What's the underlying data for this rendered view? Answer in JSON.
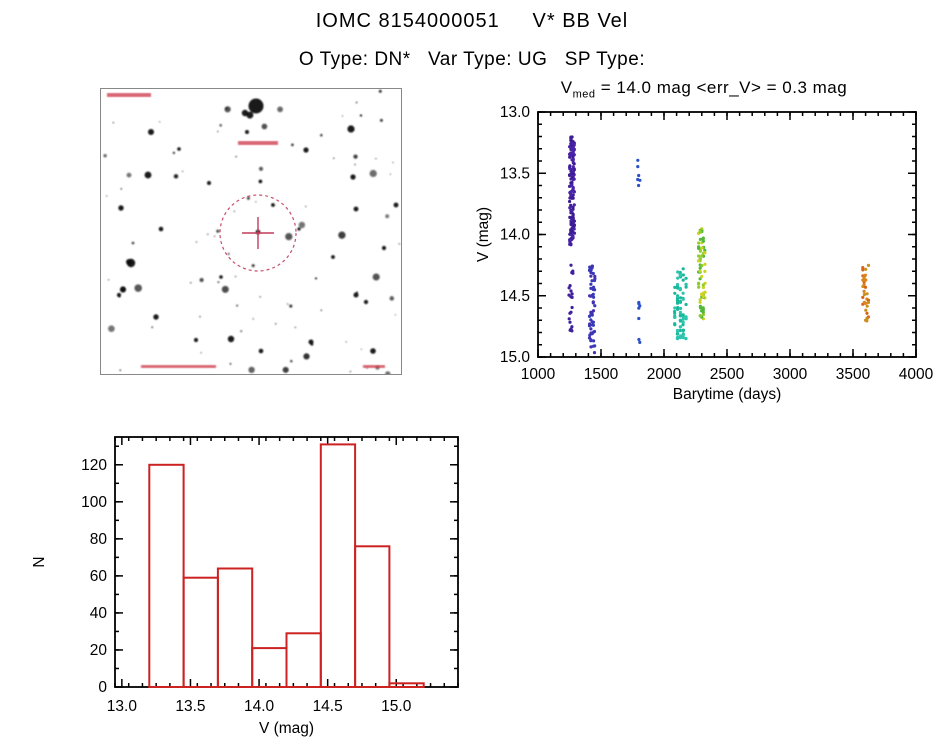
{
  "page": {
    "title": "IOMC 8154000051     V* BB Vel",
    "subtitle": "O Type: DN*   Var Type: UG   SP Type:"
  },
  "lightcurve": {
    "title_v": "V",
    "title_sub": "med",
    "title_rest": " = 14.0 mag <err_V> = 0.3 mag"
  },
  "chart_data": [
    {
      "type": "scatter",
      "title": "V_med = 14.0 mag <err_V> = 0.3 mag",
      "xlabel": "Barytime (days)",
      "ylabel": "V (mag)",
      "xlim": [
        1000,
        4000
      ],
      "ylim": [
        13.0,
        15.0
      ],
      "y_inverted": true,
      "x_ticks": [
        1000,
        1500,
        2000,
        2500,
        3000,
        3500,
        4000
      ],
      "y_ticks": [
        13.0,
        13.5,
        14.0,
        14.5,
        15.0
      ],
      "x_minor_step": 100,
      "y_minor_step": 0.1,
      "clusters": [
        {
          "name": "epoch-1-outburst-streak",
          "x_center": 1270,
          "x_spread": 18,
          "v_min": 13.2,
          "v_max": 14.1,
          "n": 150,
          "colors": [
            "#3d1d96",
            "#4a24a8"
          ]
        },
        {
          "name": "epoch-1-quiescence",
          "x_center": 1262,
          "x_spread": 12,
          "v_min": 14.25,
          "v_max": 14.8,
          "n": 22,
          "colors": [
            "#40209c"
          ]
        },
        {
          "name": "epoch-2",
          "x_center": 1430,
          "x_spread": 20,
          "v_min": 14.25,
          "v_max": 15.0,
          "n": 55,
          "colors": [
            "#4430b0",
            "#3a3ab8"
          ]
        },
        {
          "name": "epoch-3-bright",
          "x_center": 1800,
          "x_spread": 10,
          "v_min": 13.38,
          "v_max": 13.62,
          "n": 6,
          "colors": [
            "#2b50c8"
          ]
        },
        {
          "name": "epoch-3-faint",
          "x_center": 1800,
          "x_spread": 10,
          "v_min": 14.55,
          "v_max": 14.97,
          "n": 7,
          "colors": [
            "#2b50c8"
          ]
        },
        {
          "name": "epoch-4",
          "x_center": 2130,
          "x_spread": 45,
          "v_min": 14.28,
          "v_max": 14.85,
          "n": 85,
          "colors": [
            "#19b89b",
            "#2cc4ae"
          ]
        },
        {
          "name": "epoch-5",
          "x_center": 2300,
          "x_spread": 25,
          "v_min": 13.95,
          "v_max": 14.72,
          "n": 70,
          "colors": [
            "#53b83a",
            "#8fcc2e",
            "#cdd31f"
          ]
        },
        {
          "name": "epoch-6",
          "x_center": 3600,
          "x_spread": 22,
          "v_min": 14.25,
          "v_max": 14.72,
          "n": 34,
          "colors": [
            "#e0821c",
            "#d8641a",
            "#c8901e"
          ]
        }
      ]
    },
    {
      "type": "bar",
      "title": "",
      "xlabel": "V (mag)",
      "ylabel": "N",
      "xlim": [
        12.95,
        15.45
      ],
      "ylim": [
        0,
        135
      ],
      "x_ticks": [
        13.0,
        13.5,
        14.0,
        14.5,
        15.0
      ],
      "y_ticks": [
        0,
        20,
        40,
        60,
        80,
        100,
        120
      ],
      "x_minor_step": 0.1,
      "y_minor_step": 10,
      "bin_edges": [
        13.2,
        13.45,
        13.7,
        13.95,
        14.2,
        14.45,
        14.7,
        14.95,
        15.2
      ],
      "values": [
        120,
        59,
        64,
        21,
        29,
        131,
        76,
        2
      ],
      "bar_color": "#cc2222"
    }
  ],
  "finder": {
    "marker_color": "#c23b5a"
  }
}
